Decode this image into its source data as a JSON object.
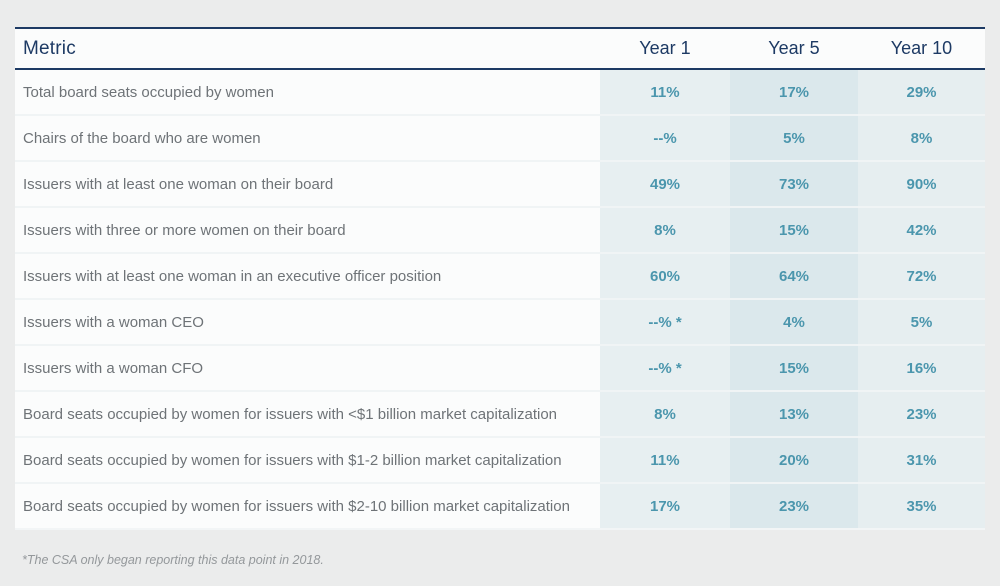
{
  "colors": {
    "page_background": "#ebecec",
    "navy_rule_and_headers": "#1d3a64",
    "row_background": "#fbfcfc",
    "metric_text_gray": "#6e7377",
    "value_teal": "#4b96ad",
    "year1_column_tint": "#e7eff1",
    "year5_column_tint": "#dbe8ec",
    "year10_column_tint": "#e6eef0",
    "footnote_gray": "#94989b"
  },
  "chart_data": {
    "type": "table",
    "title": "",
    "columns": [
      "Metric",
      "Year 1",
      "Year 5",
      "Year 10"
    ],
    "rows": [
      {
        "metric": "Total board seats occupied by women",
        "values": [
          "11%",
          "17%",
          "29%"
        ]
      },
      {
        "metric": "Chairs of the board who are women",
        "values": [
          "--%",
          "5%",
          "8%"
        ]
      },
      {
        "metric": "Issuers with at least one woman on their board",
        "values": [
          "49%",
          "73%",
          "90%"
        ]
      },
      {
        "metric": "Issuers with three or more women on their board",
        "values": [
          "8%",
          "15%",
          "42%"
        ]
      },
      {
        "metric": "Issuers with at least one woman in an executive officer position",
        "values": [
          "60%",
          "64%",
          "72%"
        ]
      },
      {
        "metric": "Issuers with a woman CEO",
        "values": [
          "--% *",
          "4%",
          "5%"
        ]
      },
      {
        "metric": "Issuers with a woman CFO",
        "values": [
          "--% *",
          "15%",
          "16%"
        ]
      },
      {
        "metric": "Board seats occupied by women for issuers with <$1 billion market capitalization",
        "values": [
          "8%",
          "13%",
          "23%"
        ]
      },
      {
        "metric": "Board seats occupied by women for issuers with $1-2 billion market capitalization",
        "values": [
          "11%",
          "20%",
          "31%"
        ]
      },
      {
        "metric": "Board seats occupied by women for issuers with $2-10 billion market capitalization",
        "values": [
          "17%",
          "23%",
          "35%"
        ]
      }
    ],
    "footnote": "*The CSA only began reporting this data point in 2018.",
    "layout": {
      "grid": "off",
      "value_columns_tinted": true,
      "middle_column_darker": true
    }
  }
}
